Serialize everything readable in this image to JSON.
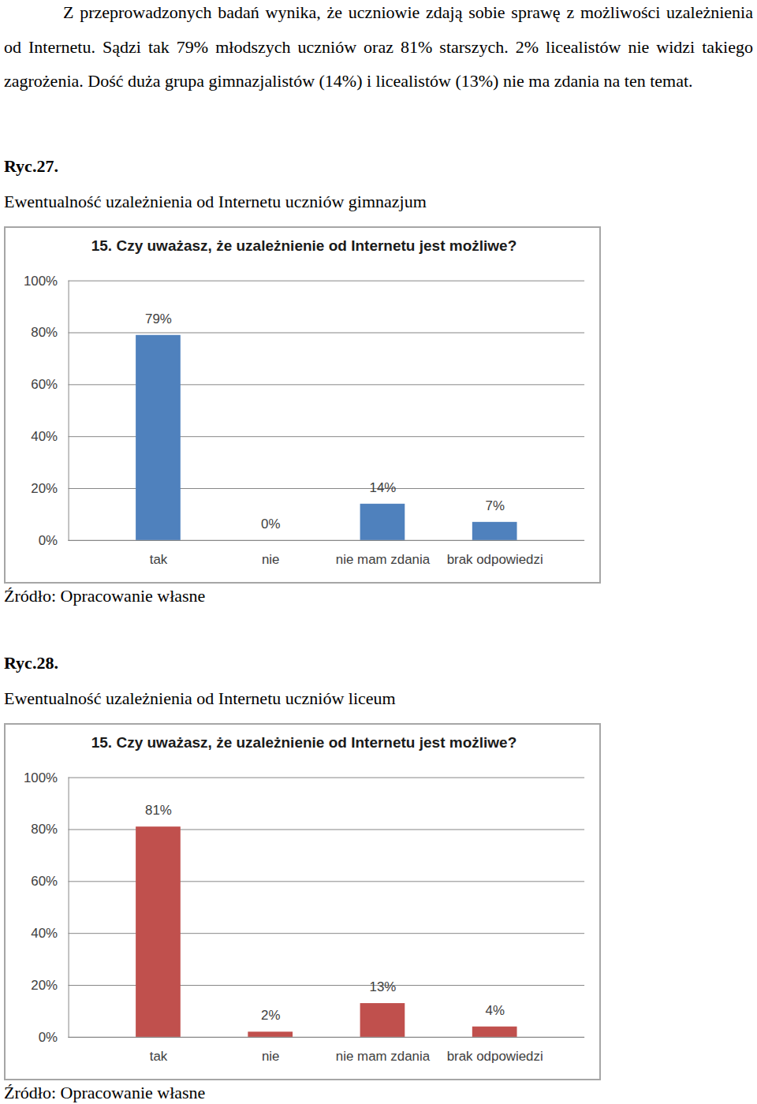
{
  "document": {
    "paragraph": "Z przeprowadzonych badań wynika, że uczniowie zdają sobie sprawę z możliwości uzależnienia od Internetu. Sądzi tak 79% młodszych uczniów oraz 81% starszych. 2% licealistów nie widzi takiego zagrożenia. Dość duża grupa gimnazjalistów (14%) i licealistów (13%) nie ma zdania na ten temat.",
    "figures": [
      {
        "number": "Ryc.27.",
        "caption": "Ewentualność uzależnienia od Internetu uczniów gimnazjum",
        "source": "Źródło: Opracowanie własne"
      },
      {
        "number": "Ryc.28.",
        "caption": "Ewentualność uzależnienia od Internetu uczniów liceum",
        "source": "Źródło: Opracowanie własne"
      }
    ]
  },
  "chart_data": [
    {
      "type": "bar",
      "title": "15. Czy uważasz, że uzależnienie od Internetu jest możliwe?",
      "categories": [
        "tak",
        "nie",
        "nie mam zdania",
        "brak odpowiedzi"
      ],
      "values": [
        79,
        0,
        14,
        7
      ],
      "value_labels": [
        "79%",
        "0%",
        "14%",
        "7%"
      ],
      "color": "#4f81bd",
      "data_labels": true,
      "grid": true,
      "ylim": [
        0,
        100
      ],
      "yticks": [
        {
          "value": 0,
          "label": "0%"
        },
        {
          "value": 20,
          "label": "20%"
        },
        {
          "value": 40,
          "label": "40%"
        },
        {
          "value": 60,
          "label": "60%"
        },
        {
          "value": 80,
          "label": "80%"
        },
        {
          "value": 100,
          "label": "100%"
        }
      ]
    },
    {
      "type": "bar",
      "title": "15. Czy uważasz, że uzależnienie od Internetu jest możliwe?",
      "categories": [
        "tak",
        "nie",
        "nie mam zdania",
        "brak odpowiedzi"
      ],
      "values": [
        81,
        2,
        13,
        4
      ],
      "value_labels": [
        "81%",
        "2%",
        "13%",
        "4%"
      ],
      "color": "#c0504d",
      "data_labels": true,
      "grid": true,
      "ylim": [
        0,
        100
      ],
      "yticks": [
        {
          "value": 0,
          "label": "0%"
        },
        {
          "value": 20,
          "label": "20%"
        },
        {
          "value": 40,
          "label": "40%"
        },
        {
          "value": 60,
          "label": "60%"
        },
        {
          "value": 80,
          "label": "80%"
        },
        {
          "value": 100,
          "label": "100%"
        }
      ]
    }
  ]
}
